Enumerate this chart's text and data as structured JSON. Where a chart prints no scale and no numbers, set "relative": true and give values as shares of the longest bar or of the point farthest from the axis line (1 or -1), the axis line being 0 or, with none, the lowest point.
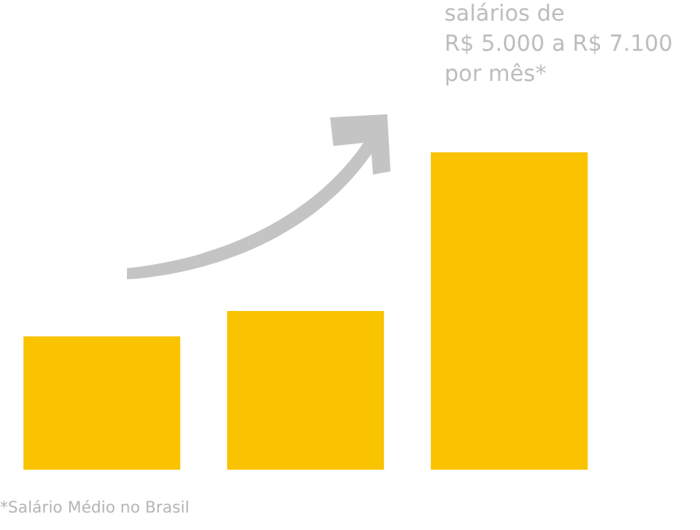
{
  "chart_data": {
    "type": "bar",
    "relative": true,
    "title": "salários de\nR$ 5.000 a R$ 7.100\npor mês*",
    "categories": [
      null,
      null,
      null
    ],
    "values": [
      0.42,
      0.5,
      1
    ],
    "color": "#f9c300",
    "annotations": [
      "*Salário Médio no Brasil"
    ]
  }
}
